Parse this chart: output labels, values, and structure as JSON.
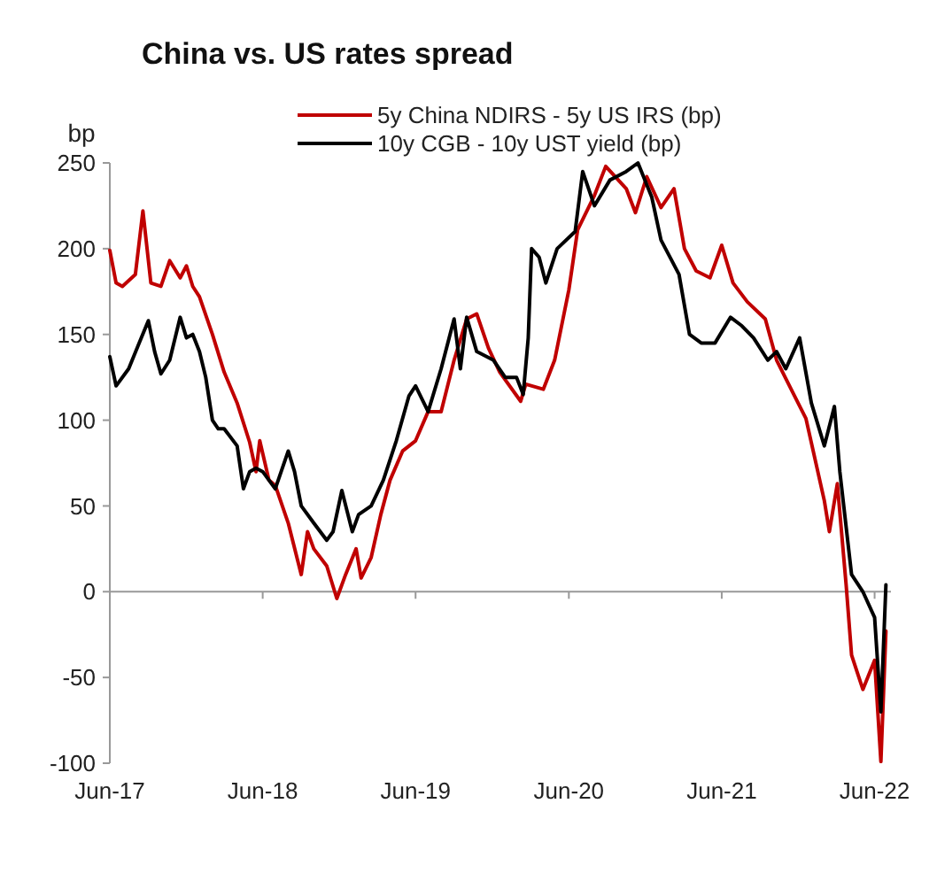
{
  "chart_data": {
    "type": "line",
    "title": "China vs. US rates spread",
    "ylabel": "bp",
    "legend": "top",
    "grid": false,
    "line_style": "solid",
    "marker": "none",
    "xlim": [
      "2017-06-01",
      "2022-07-10"
    ],
    "xticks": [
      {
        "value": "2017-06-01",
        "label": "Jun-17"
      },
      {
        "value": "2018-06-01",
        "label": "Jun-18"
      },
      {
        "value": "2019-06-01",
        "label": "Jun-19"
      },
      {
        "value": "2020-06-01",
        "label": "Jun-20"
      },
      {
        "value": "2021-06-01",
        "label": "Jun-21"
      },
      {
        "value": "2022-06-01",
        "label": "Jun-22"
      }
    ],
    "ylim": [
      -100,
      250
    ],
    "yticks": [
      -100,
      -50,
      0,
      50,
      100,
      150,
      200,
      250
    ],
    "ref_lines": [
      {
        "axis": "y",
        "value": 0,
        "color": "#999999"
      }
    ],
    "series": [
      {
        "name": "5y China NDIRS - 5y US IRS (bp)",
        "color": "#c00000",
        "x": [
          "2017-06-01",
          "2017-06-16",
          "2017-07-01",
          "2017-08-01",
          "2017-08-19",
          "2017-09-07",
          "2017-10-01",
          "2017-10-22",
          "2017-11-16",
          "2017-12-01",
          "2017-12-16",
          "2018-01-01",
          "2018-02-01",
          "2018-03-01",
          "2018-04-01",
          "2018-05-01",
          "2018-05-16",
          "2018-05-25",
          "2018-06-16",
          "2018-07-01",
          "2018-08-01",
          "2018-09-01",
          "2018-09-16",
          "2018-10-01",
          "2018-11-01",
          "2018-11-25",
          "2018-12-16",
          "2019-01-10",
          "2019-01-22",
          "2019-02-15",
          "2019-03-10",
          "2019-04-01",
          "2019-05-01",
          "2019-06-01",
          "2019-07-01",
          "2019-08-01",
          "2019-09-01",
          "2019-10-01",
          "2019-10-25",
          "2019-11-22",
          "2019-12-19",
          "2020-02-07",
          "2020-02-19",
          "2020-04-01",
          "2020-04-28",
          "2020-06-01",
          "2020-06-22",
          "2020-08-01",
          "2020-08-28",
          "2020-10-16",
          "2020-11-07",
          "2020-12-04",
          "2021-01-07",
          "2021-02-07",
          "2021-03-04",
          "2021-04-01",
          "2021-05-04",
          "2021-06-01",
          "2021-06-28",
          "2021-08-01",
          "2021-09-13",
          "2021-10-10",
          "2021-11-22",
          "2021-12-19",
          "2022-02-01",
          "2022-02-13",
          "2022-03-04",
          "2022-03-25",
          "2022-04-07",
          "2022-05-04",
          "2022-06-01",
          "2022-06-16",
          "2022-06-28"
        ],
        "values": [
          199,
          180,
          178,
          185,
          222,
          180,
          178,
          193,
          183,
          190,
          178,
          172,
          150,
          128,
          110,
          87,
          70,
          88,
          65,
          62,
          40,
          10,
          35,
          25,
          15,
          -4,
          10,
          25,
          8,
          20,
          45,
          65,
          82,
          88,
          105,
          105,
          135,
          159,
          162,
          142,
          128,
          111,
          121,
          118,
          135,
          176,
          211,
          231,
          248,
          235,
          221,
          242,
          224,
          235,
          200,
          187,
          183,
          202,
          180,
          169,
          159,
          135,
          114,
          101,
          53,
          35,
          63,
          4,
          -37,
          -57,
          -40,
          -99,
          -23
        ]
      },
      {
        "name": "10y CGB - 10y UST yield (bp)",
        "color": "#000000",
        "x": [
          "2017-06-01",
          "2017-06-16",
          "2017-07-16",
          "2017-08-10",
          "2017-09-01",
          "2017-09-16",
          "2017-10-01",
          "2017-10-22",
          "2017-11-16",
          "2017-12-01",
          "2017-12-16",
          "2018-01-01",
          "2018-01-16",
          "2018-02-01",
          "2018-02-15",
          "2018-03-01",
          "2018-04-01",
          "2018-04-16",
          "2018-05-01",
          "2018-05-16",
          "2018-06-01",
          "2018-07-01",
          "2018-08-01",
          "2018-08-16",
          "2018-09-01",
          "2018-10-01",
          "2018-11-01",
          "2018-11-16",
          "2018-12-07",
          "2019-01-01",
          "2019-01-16",
          "2019-02-15",
          "2019-03-16",
          "2019-04-16",
          "2019-05-16",
          "2019-06-01",
          "2019-07-01",
          "2019-08-01",
          "2019-09-01",
          "2019-09-16",
          "2019-10-01",
          "2019-10-25",
          "2019-12-04",
          "2020-01-01",
          "2020-01-28",
          "2020-02-13",
          "2020-02-25",
          "2020-03-04",
          "2020-03-22",
          "2020-04-07",
          "2020-05-04",
          "2020-06-16",
          "2020-07-04",
          "2020-08-01",
          "2020-09-07",
          "2020-10-16",
          "2020-11-13",
          "2020-12-16",
          "2021-01-07",
          "2021-02-19",
          "2021-03-16",
          "2021-04-13",
          "2021-05-16",
          "2021-06-22",
          "2021-07-19",
          "2021-08-16",
          "2021-09-19",
          "2021-10-10",
          "2021-11-01",
          "2021-12-04",
          "2022-01-01",
          "2022-02-01",
          "2022-02-25",
          "2022-03-10",
          "2022-04-07",
          "2022-05-04",
          "2022-06-01",
          "2022-06-16",
          "2022-06-28"
        ],
        "values": [
          137,
          120,
          130,
          145,
          158,
          140,
          127,
          135,
          160,
          148,
          150,
          140,
          125,
          100,
          95,
          95,
          85,
          60,
          70,
          72,
          70,
          60,
          82,
          70,
          50,
          40,
          30,
          35,
          59,
          35,
          45,
          50,
          65,
          88,
          114,
          120,
          105,
          130,
          159,
          130,
          160,
          140,
          135,
          125,
          125,
          115,
          148,
          200,
          195,
          180,
          200,
          210,
          245,
          225,
          240,
          245,
          250,
          230,
          205,
          185,
          150,
          145,
          145,
          160,
          155,
          148,
          135,
          140,
          130,
          148,
          110,
          85,
          108,
          70,
          10,
          0,
          -15,
          -70,
          4
        ]
      }
    ]
  }
}
